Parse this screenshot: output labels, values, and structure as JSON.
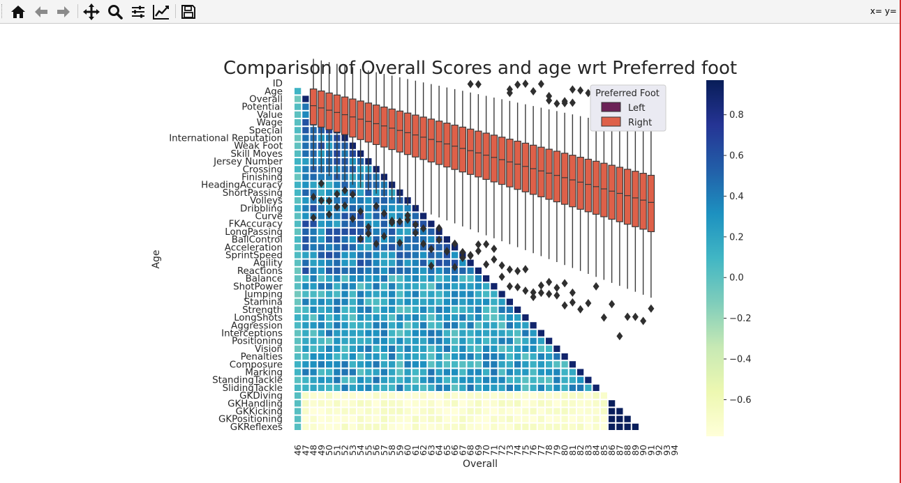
{
  "toolbar": {
    "buttons": [
      {
        "icon": "home-icon"
      },
      {
        "icon": "back-arrow-icon"
      },
      {
        "icon": "forward-arrow-icon"
      },
      {
        "icon": "pan-icon"
      },
      {
        "icon": "zoom-icon"
      },
      {
        "icon": "configure-subplots-icon"
      },
      {
        "icon": "edit-axis-icon"
      },
      {
        "icon": "save-icon"
      }
    ],
    "coords": "x= y="
  },
  "chart_data": {
    "type": "heatmap",
    "title": "Comparison of Overall Scores and age wrt Preferred foot",
    "xlabel": "Overall",
    "ylabel": "Age",
    "x_ticks": [
      "46",
      "47",
      "48",
      "49",
      "50",
      "51",
      "52",
      "53",
      "54",
      "55",
      "56",
      "57",
      "58",
      "59",
      "60",
      "61",
      "62",
      "63",
      "64",
      "65",
      "66",
      "67",
      "68",
      "69",
      "70",
      "71",
      "72",
      "73",
      "74",
      "75",
      "76",
      "77",
      "78",
      "79",
      "80",
      "81",
      "82",
      "83",
      "84",
      "85",
      "86",
      "87",
      "88",
      "89",
      "90",
      "91",
      "92",
      "93",
      "94"
    ],
    "y_ticks": [
      "ID",
      "Age",
      "Overall",
      "Potential",
      "Value",
      "Wage",
      "Special",
      "International Reputation",
      "Weak Foot",
      "Skill Moves",
      "Jersey Number",
      "Crossing",
      "Finishing",
      "HeadingAccuracy",
      "ShortPassing",
      "Volleys",
      "Dribbling",
      "Curve",
      "FKAccuracy",
      "LongPassing",
      "BallControl",
      "Acceleration",
      "SprintSpeed",
      "Agility",
      "Reactions",
      "Balance",
      "ShotPower",
      "Jumping",
      "Stamina",
      "Strength",
      "LongShots",
      "Aggression",
      "Interceptions",
      "Positioning",
      "Vision",
      "Penalties",
      "Composure",
      "Marking",
      "StandingTackle",
      "SlidingTackle",
      "GKDiving",
      "GKHandling",
      "GKKicking",
      "GKPositioning",
      "GKReflexes"
    ],
    "colorbar": {
      "cmap": "YlGnBu",
      "ticks": [
        "0.8",
        "0.6",
        "0.4",
        "0.2",
        "0.0",
        "−0.2",
        "−0.4",
        "−0.6"
      ],
      "tick_values": [
        0.8,
        0.6,
        0.4,
        0.2,
        0.0,
        -0.2,
        -0.4,
        -0.6
      ],
      "range": [
        -0.78,
        0.97
      ]
    },
    "legend": {
      "title": "Preferred Foot",
      "entries": [
        "Left",
        "Right"
      ],
      "colors": [
        "#6b2157",
        "#de6049"
      ],
      "placement": "top-right"
    },
    "box_color": "#de6049",
    "whisker_color": "#3a3a3a"
  }
}
